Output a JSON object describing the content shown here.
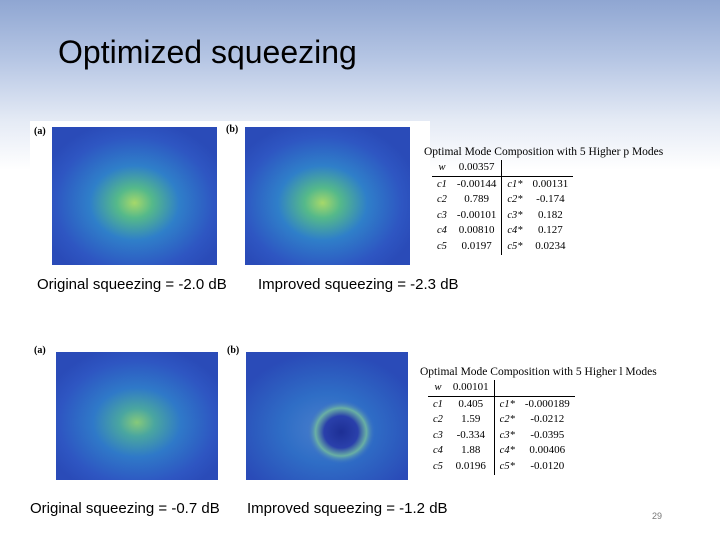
{
  "slide": {
    "title": "Optimized squeezing",
    "page_number": "29"
  },
  "row1": {
    "label_a": "(a)",
    "label_b": "(b)",
    "caption_left": "Original squeezing = -2.0 dB",
    "caption_right": "Improved squeezing = -2.3 dB",
    "table": {
      "caption": "Optimal Mode Composition with 5 Higher p Modes",
      "w_label": "w",
      "w_value": "0.00357",
      "rows": [
        {
          "c": "c1",
          "cv": "-0.00144",
          "cs": "c1*",
          "csv": "0.00131"
        },
        {
          "c": "c2",
          "cv": "0.789",
          "cs": "c2*",
          "csv": "-0.174"
        },
        {
          "c": "c3",
          "cv": "-0.00101",
          "cs": "c3*",
          "csv": "0.182"
        },
        {
          "c": "c4",
          "cv": "0.00810",
          "cs": "c4*",
          "csv": "0.127"
        },
        {
          "c": "c5",
          "cv": "0.0197",
          "cs": "c5*",
          "csv": "0.0234"
        }
      ]
    }
  },
  "row2": {
    "label_a": "(a)",
    "label_b": "(b)",
    "caption_left": "Original squeezing = -0.7 dB",
    "caption_right": "Improved squeezing = -1.2 dB",
    "table": {
      "caption": "Optimal Mode Composition with 5 Higher l Modes",
      "w_label": "w",
      "w_value": "0.00101",
      "rows": [
        {
          "c": "c1",
          "cv": "0.405",
          "cs": "c1*",
          "csv": "-0.000189"
        },
        {
          "c": "c2",
          "cv": "1.59",
          "cs": "c2*",
          "csv": "-0.0212"
        },
        {
          "c": "c3",
          "cv": "-0.334",
          "cs": "c3*",
          "csv": "-0.0395"
        },
        {
          "c": "c4",
          "cv": "1.88",
          "cs": "c4*",
          "csv": "0.00406"
        },
        {
          "c": "c5",
          "cv": "0.0196",
          "cs": "c5*",
          "csv": "-0.0120"
        }
      ]
    }
  },
  "colors": {
    "beam_background": "#3a5fc6",
    "beam_core": "#8fd06e"
  }
}
